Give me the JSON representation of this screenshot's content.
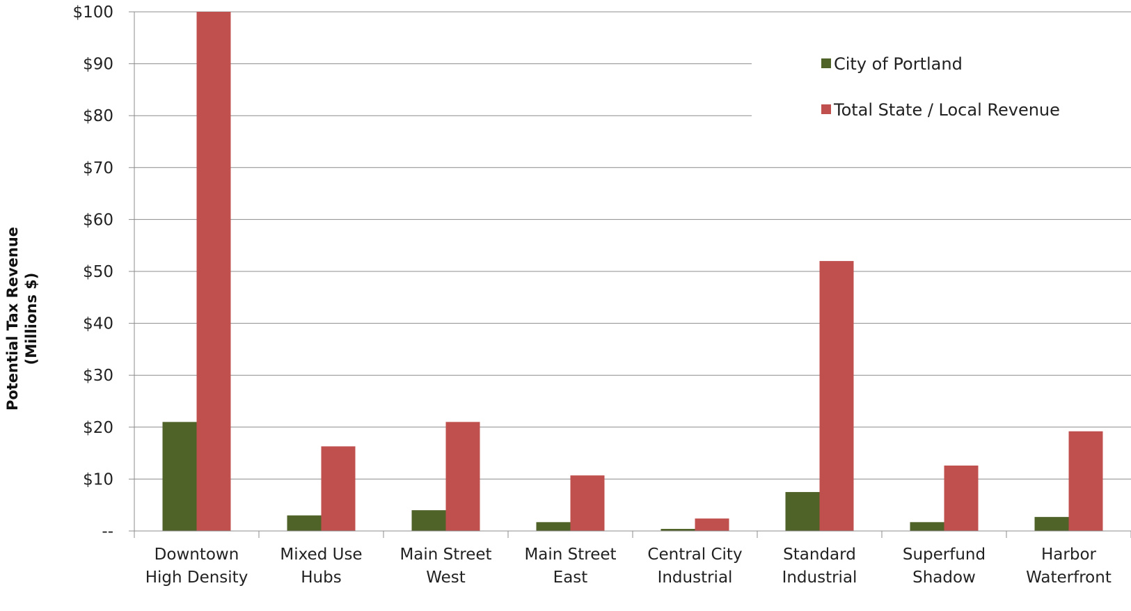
{
  "chart_data": {
    "type": "bar",
    "title": "",
    "xlabel": "",
    "ylabel": [
      "Potential Tax Revenue",
      "(Millions $)"
    ],
    "ylim": [
      0,
      100
    ],
    "ytick_values": [
      0,
      10,
      20,
      30,
      40,
      50,
      60,
      70,
      80,
      90,
      100
    ],
    "ytick_labels": [
      "--",
      "$10",
      "$20",
      "$30",
      "$40",
      "$50",
      "$60",
      "$70",
      "$80",
      "$90",
      "$100"
    ],
    "grid": true,
    "legend_position": "top-right",
    "categories": [
      [
        "Downtown",
        "High Density"
      ],
      [
        "Mixed Use",
        "Hubs"
      ],
      [
        "Main Street",
        "West"
      ],
      [
        "Main Street",
        "East"
      ],
      [
        "Central City",
        "Industrial"
      ],
      [
        "Standard",
        "Industrial"
      ],
      [
        "Superfund",
        "Shadow"
      ],
      [
        "Harbor",
        "Waterfront"
      ]
    ],
    "series": [
      {
        "name": "City of Portland",
        "color": "#4f6228",
        "values": [
          21,
          3,
          4,
          1.7,
          0.4,
          7.5,
          1.7,
          2.7
        ]
      },
      {
        "name": "Total State / Local Revenue",
        "color": "#c0504d",
        "values": [
          100,
          16.3,
          21,
          10.7,
          2.4,
          52,
          12.6,
          19.2
        ]
      }
    ]
  }
}
